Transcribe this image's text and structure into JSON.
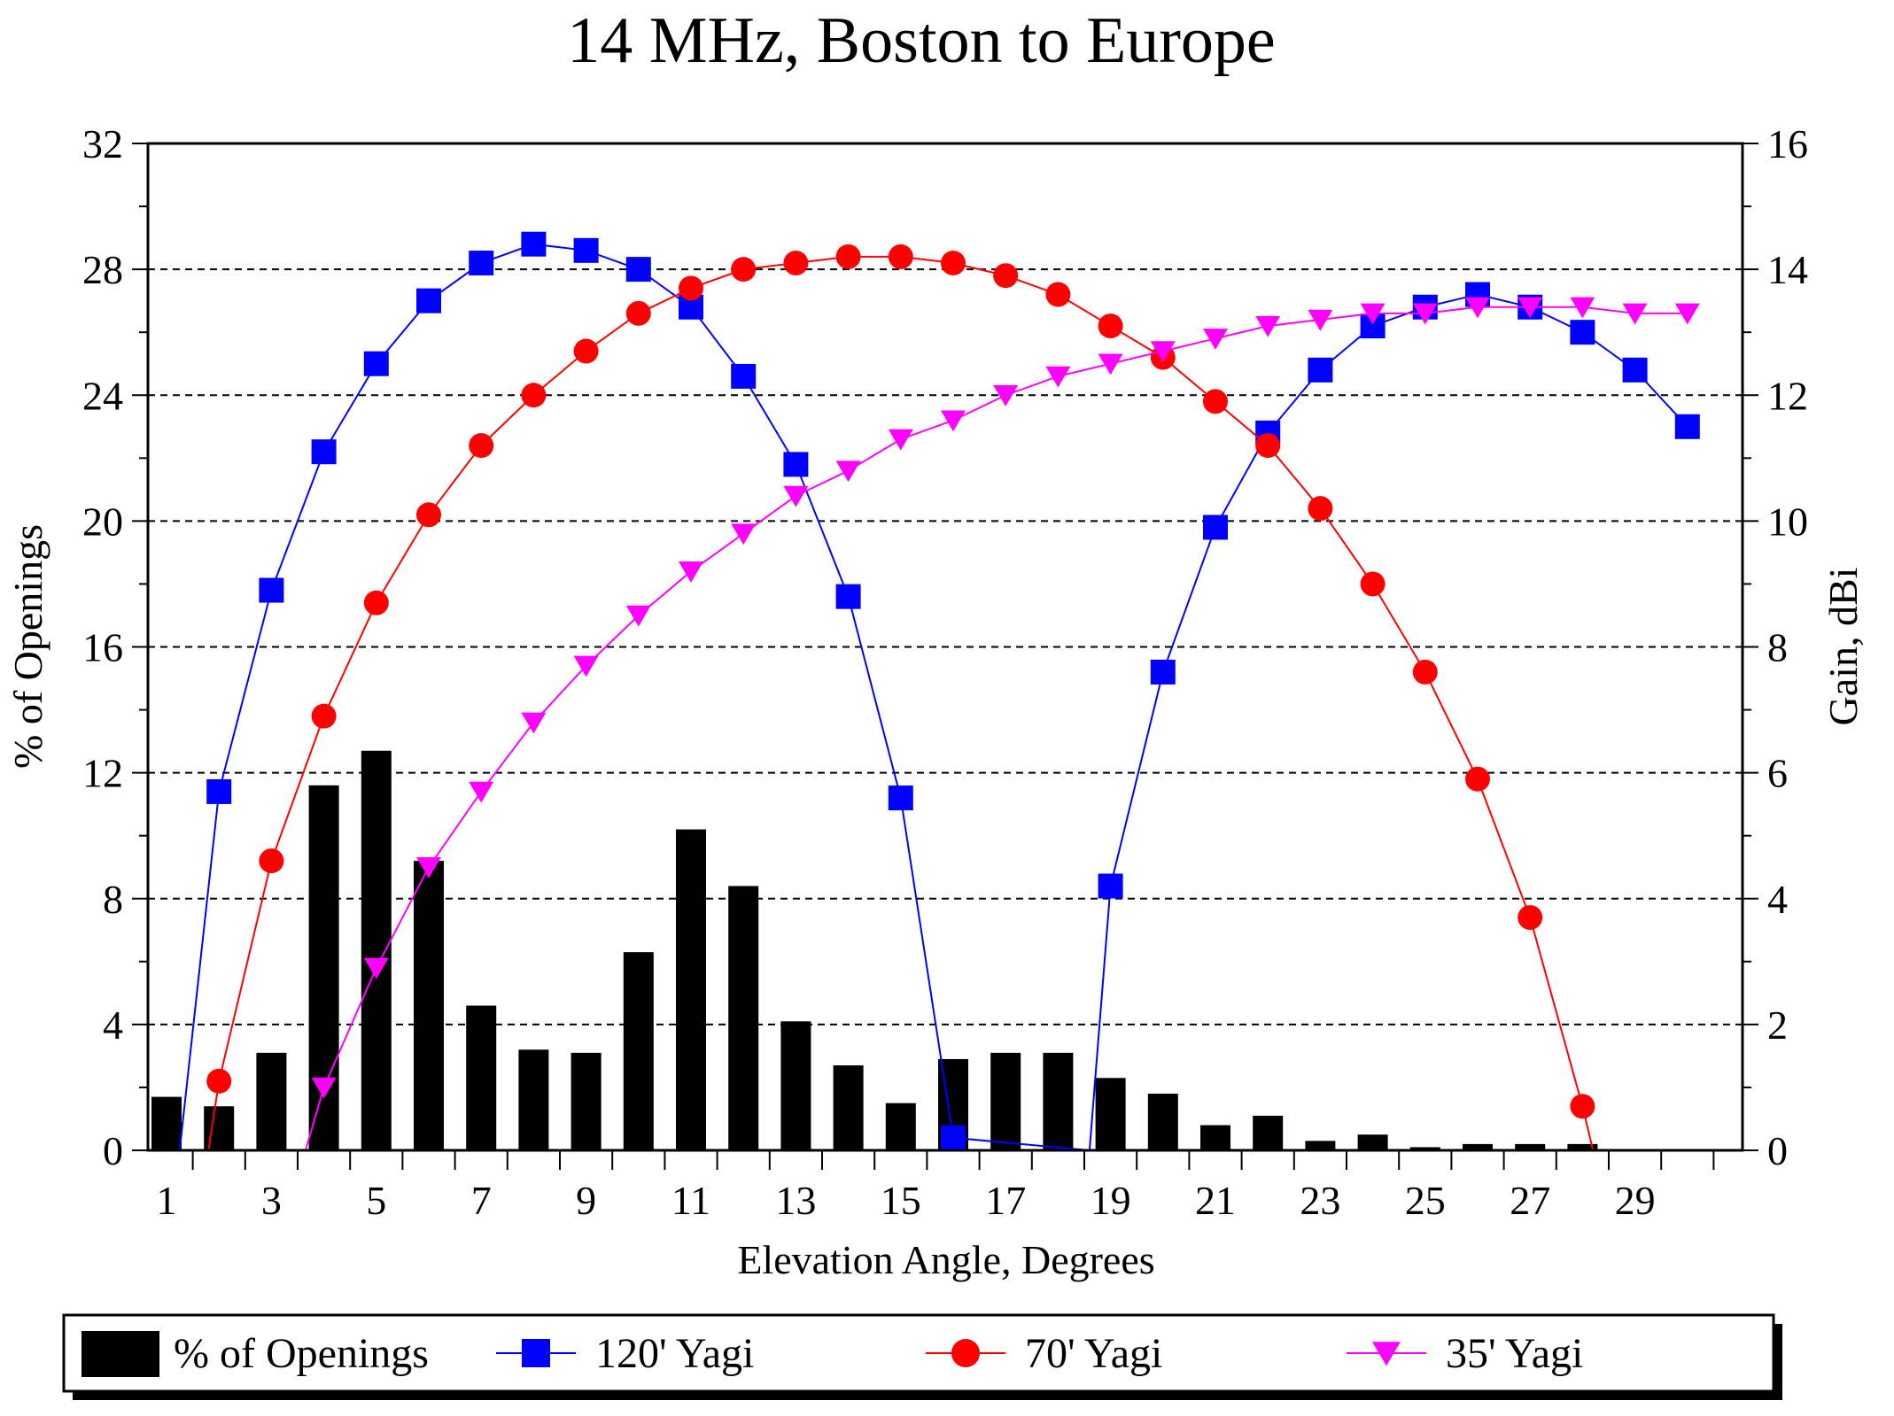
{
  "chart_data": {
    "type": "bar",
    "title": "14 MHz, Boston to Europe",
    "xlabel": "Elevation Angle, Degrees",
    "ylabel": "% of Openings",
    "y2label": "Gain, dBi",
    "ylim": [
      0,
      32
    ],
    "y2lim": [
      0,
      16
    ],
    "xlim": [
      1,
      30
    ],
    "yticks": [
      "0",
      "4",
      "8",
      "12",
      "16",
      "20",
      "24",
      "28",
      "32"
    ],
    "y2ticks": [
      "0",
      "2",
      "4",
      "6",
      "8",
      "10",
      "12",
      "14",
      "16"
    ],
    "xticks": [
      "1",
      "3",
      "5",
      "7",
      "9",
      "11",
      "13",
      "15",
      "17",
      "19",
      "21",
      "23",
      "25",
      "27",
      "29"
    ],
    "grid": "horizontal dashed",
    "legend_position": "bottom",
    "legend": [
      {
        "label": "% of Openings",
        "kind": "bar",
        "color": "#000000"
      },
      {
        "label": "120' Yagi",
        "kind": "line-square",
        "color": "#0000ff"
      },
      {
        "label": "70' Yagi",
        "kind": "line-circle",
        "color": "#ff0000"
      },
      {
        "label": "35' Yagi",
        "kind": "line-triangle",
        "color": "#ff00ff"
      }
    ],
    "bars": {
      "name": "% of Openings",
      "axis": "left",
      "x": [
        1,
        2,
        3,
        4,
        5,
        6,
        7,
        8,
        9,
        10,
        11,
        12,
        13,
        14,
        15,
        16,
        17,
        18,
        19,
        20,
        21,
        22,
        23,
        24,
        25,
        26,
        27,
        28
      ],
      "values": [
        1.7,
        1.4,
        3.1,
        11.6,
        12.7,
        9.2,
        4.6,
        3.2,
        3.1,
        6.3,
        10.2,
        8.4,
        4.1,
        2.7,
        1.5,
        2.9,
        3.1,
        3.1,
        2.3,
        1.8,
        0.8,
        1.1,
        0.3,
        0.5,
        0.1,
        0.2,
        0.2,
        0.2
      ]
    },
    "series": [
      {
        "name": "120' Yagi",
        "axis": "right",
        "color": "#0000ff",
        "marker": "square",
        "points": [
          [
            1.25,
            0
          ],
          [
            2,
            5.7
          ],
          [
            3,
            8.9
          ],
          [
            4,
            11.1
          ],
          [
            5,
            12.5
          ],
          [
            6,
            13.5
          ],
          [
            7,
            14.1
          ],
          [
            8,
            14.4
          ],
          [
            9,
            14.3
          ],
          [
            10,
            14.0
          ],
          [
            11,
            13.4
          ],
          [
            12,
            12.3
          ],
          [
            13,
            10.9
          ],
          [
            14,
            8.8
          ],
          [
            15,
            5.6
          ],
          [
            16,
            0.2
          ],
          [
            18.6,
            0
          ],
          [
            19,
            4.2
          ],
          [
            20,
            7.6
          ],
          [
            21,
            9.9
          ],
          [
            22,
            11.4
          ],
          [
            23,
            12.4
          ],
          [
            24,
            13.1
          ],
          [
            25,
            13.4
          ],
          [
            26,
            13.6
          ],
          [
            27,
            13.4
          ],
          [
            28,
            13.0
          ],
          [
            29,
            12.4
          ],
          [
            30,
            11.5
          ]
        ],
        "marker_points": [
          [
            2,
            5.7
          ],
          [
            3,
            8.9
          ],
          [
            4,
            11.1
          ],
          [
            5,
            12.5
          ],
          [
            6,
            13.5
          ],
          [
            7,
            14.1
          ],
          [
            8,
            14.4
          ],
          [
            9,
            14.3
          ],
          [
            10,
            14.0
          ],
          [
            11,
            13.4
          ],
          [
            12,
            12.3
          ],
          [
            13,
            10.9
          ],
          [
            14,
            8.8
          ],
          [
            15,
            5.6
          ],
          [
            16,
            0.2
          ],
          [
            19,
            4.2
          ],
          [
            20,
            7.6
          ],
          [
            21,
            9.9
          ],
          [
            22,
            11.4
          ],
          [
            23,
            12.4
          ],
          [
            24,
            13.1
          ],
          [
            25,
            13.4
          ],
          [
            26,
            13.6
          ],
          [
            27,
            13.4
          ],
          [
            28,
            13.0
          ],
          [
            29,
            12.4
          ],
          [
            30,
            11.5
          ]
        ]
      },
      {
        "name": "70' Yagi",
        "axis": "right",
        "color": "#ff0000",
        "marker": "circle",
        "points": [
          [
            1.8,
            0
          ],
          [
            2,
            1.1
          ],
          [
            3,
            4.6
          ],
          [
            4,
            6.9
          ],
          [
            5,
            8.7
          ],
          [
            6,
            10.1
          ],
          [
            7,
            11.2
          ],
          [
            8,
            12.0
          ],
          [
            9,
            12.7
          ],
          [
            10,
            13.3
          ],
          [
            11,
            13.7
          ],
          [
            12,
            14.0
          ],
          [
            13,
            14.1
          ],
          [
            14,
            14.2
          ],
          [
            15,
            14.2
          ],
          [
            16,
            14.1
          ],
          [
            17,
            13.9
          ],
          [
            18,
            13.6
          ],
          [
            19,
            13.1
          ],
          [
            20,
            12.6
          ],
          [
            21,
            11.9
          ],
          [
            22,
            11.2
          ],
          [
            23,
            10.2
          ],
          [
            24,
            9.0
          ],
          [
            25,
            7.6
          ],
          [
            26,
            5.9
          ],
          [
            27,
            3.7
          ],
          [
            28,
            0.7
          ],
          [
            28.2,
            0
          ]
        ],
        "marker_points": [
          [
            2,
            1.1
          ],
          [
            3,
            4.6
          ],
          [
            4,
            6.9
          ],
          [
            5,
            8.7
          ],
          [
            6,
            10.1
          ],
          [
            7,
            11.2
          ],
          [
            8,
            12.0
          ],
          [
            9,
            12.7
          ],
          [
            10,
            13.3
          ],
          [
            11,
            13.7
          ],
          [
            12,
            14.0
          ],
          [
            13,
            14.1
          ],
          [
            14,
            14.2
          ],
          [
            15,
            14.2
          ],
          [
            16,
            14.1
          ],
          [
            17,
            13.9
          ],
          [
            18,
            13.6
          ],
          [
            19,
            13.1
          ],
          [
            20,
            12.6
          ],
          [
            21,
            11.9
          ],
          [
            22,
            11.2
          ],
          [
            23,
            10.2
          ],
          [
            24,
            9.0
          ],
          [
            25,
            7.6
          ],
          [
            26,
            5.9
          ],
          [
            27,
            3.7
          ],
          [
            28,
            0.7
          ]
        ]
      },
      {
        "name": "35' Yagi",
        "axis": "right",
        "color": "#ff00ff",
        "marker": "triangle-down",
        "points": [
          [
            3.65,
            0
          ],
          [
            4,
            1.0
          ],
          [
            5,
            2.9
          ],
          [
            6,
            4.5
          ],
          [
            7,
            5.7
          ],
          [
            8,
            6.8
          ],
          [
            9,
            7.7
          ],
          [
            10,
            8.5
          ],
          [
            11,
            9.2
          ],
          [
            12,
            9.8
          ],
          [
            13,
            10.4
          ],
          [
            14,
            10.8
          ],
          [
            15,
            11.3
          ],
          [
            16,
            11.6
          ],
          [
            17,
            12.0
          ],
          [
            18,
            12.3
          ],
          [
            19,
            12.5
          ],
          [
            20,
            12.7
          ],
          [
            21,
            12.9
          ],
          [
            22,
            13.1
          ],
          [
            23,
            13.2
          ],
          [
            24,
            13.3
          ],
          [
            25,
            13.3
          ],
          [
            26,
            13.4
          ],
          [
            27,
            13.4
          ],
          [
            28,
            13.4
          ],
          [
            29,
            13.3
          ],
          [
            30,
            13.3
          ]
        ],
        "marker_points": [
          [
            4,
            1.0
          ],
          [
            5,
            2.9
          ],
          [
            6,
            4.5
          ],
          [
            7,
            5.7
          ],
          [
            8,
            6.8
          ],
          [
            9,
            7.7
          ],
          [
            10,
            8.5
          ],
          [
            11,
            9.2
          ],
          [
            12,
            9.8
          ],
          [
            13,
            10.4
          ],
          [
            14,
            10.8
          ],
          [
            15,
            11.3
          ],
          [
            16,
            11.6
          ],
          [
            17,
            12.0
          ],
          [
            18,
            12.3
          ],
          [
            19,
            12.5
          ],
          [
            20,
            12.7
          ],
          [
            21,
            12.9
          ],
          [
            22,
            13.1
          ],
          [
            23,
            13.2
          ],
          [
            24,
            13.3
          ],
          [
            25,
            13.3
          ],
          [
            26,
            13.4
          ],
          [
            27,
            13.4
          ],
          [
            28,
            13.4
          ],
          [
            29,
            13.3
          ],
          [
            30,
            13.3
          ]
        ]
      }
    ]
  }
}
